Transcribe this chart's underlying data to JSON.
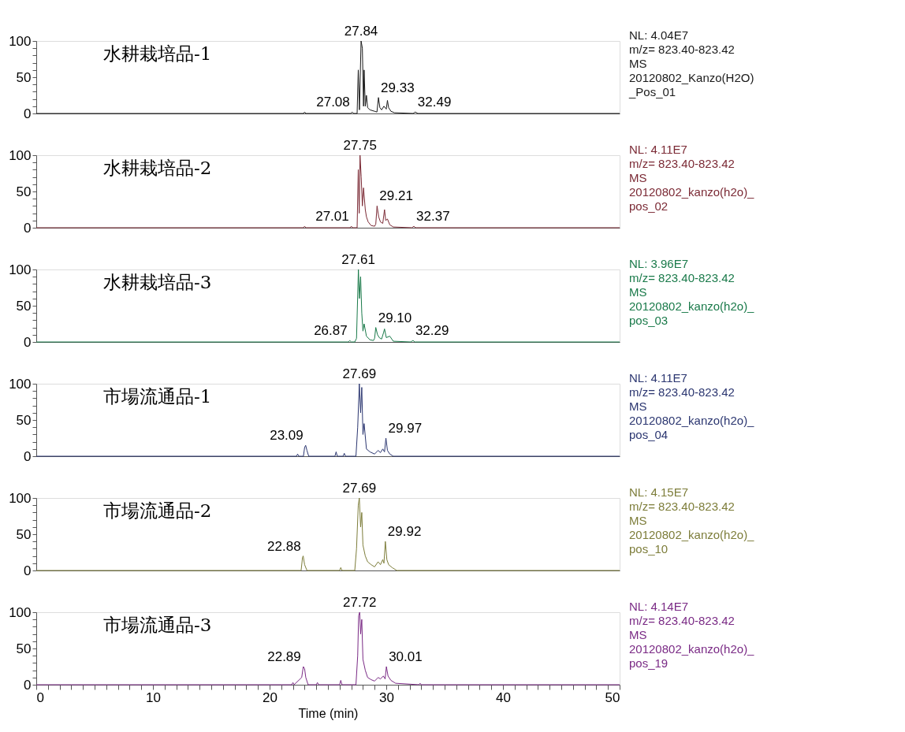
{
  "chart_data": [
    {
      "type": "line",
      "xlim": [
        0,
        50
      ],
      "ylim": [
        0,
        100
      ],
      "tick_labels": "y",
      "grid": false,
      "legend": false,
      "marker": "none",
      "yticks": [
        0,
        {
          "value": 10,
          "label": null
        },
        {
          "value": 20,
          "label": null
        },
        {
          "value": 30,
          "label": null
        },
        {
          "value": 40,
          "label": null
        },
        50,
        {
          "value": 60,
          "label": null
        },
        {
          "value": 70,
          "label": null
        },
        {
          "value": 80,
          "label": null
        },
        {
          "value": 90,
          "label": null
        },
        100
      ],
      "x": [
        0,
        22.9,
        23.0,
        23.1,
        26.95,
        27.08,
        27.2,
        27.5,
        27.6,
        27.7,
        27.84,
        27.95,
        28.05,
        28.1,
        28.2,
        28.3,
        28.4,
        28.6,
        29.0,
        29.2,
        29.33,
        29.45,
        29.6,
        29.8,
        30.0,
        30.1,
        30.2,
        30.4,
        30.7,
        32.3,
        32.49,
        32.7,
        50
      ],
      "series": [
        {
          "color": "#1a1a1a",
          "values": [
            0,
            0,
            2,
            0,
            0,
            2,
            0,
            0,
            60,
            5,
            100,
            90,
            10,
            60,
            10,
            25,
            8,
            5,
            3,
            2,
            22,
            8,
            5,
            10,
            6,
            18,
            8,
            3,
            1,
            0,
            2,
            0,
            0
          ]
        }
      ],
      "annotations": [
        "水耕栽培品-1",
        "NL: 4.04E7\nm/z= 823.40-823.42\nMS\n20120802_Kanzo(H2O)\n_Pos_01",
        {
          "text": "27.08",
          "x": 27.08,
          "y": 2
        },
        {
          "text": "27.84",
          "x": 27.84,
          "y": 100
        },
        {
          "text": "29.33",
          "x": 29.33,
          "y": 22
        },
        {
          "text": "32.49",
          "x": 32.49,
          "y": 2
        }
      ]
    },
    {
      "type": "line",
      "xlim": [
        0,
        50
      ],
      "ylim": [
        0,
        100
      ],
      "tick_labels": "y",
      "grid": false,
      "legend": false,
      "marker": "none",
      "yticks": [
        0,
        {
          "value": 10,
          "label": null
        },
        {
          "value": 20,
          "label": null
        },
        {
          "value": 30,
          "label": null
        },
        {
          "value": 40,
          "label": null
        },
        50,
        {
          "value": 60,
          "label": null
        },
        {
          "value": 70,
          "label": null
        },
        {
          "value": 80,
          "label": null
        },
        {
          "value": 90,
          "label": null
        },
        100
      ],
      "x": [
        0,
        22.9,
        23.0,
        23.1,
        26.9,
        27.01,
        27.1,
        27.5,
        27.6,
        27.68,
        27.75,
        27.85,
        27.95,
        28.05,
        28.2,
        28.3,
        28.45,
        28.7,
        29.0,
        29.1,
        29.21,
        29.35,
        29.5,
        29.7,
        29.85,
        29.95,
        30.1,
        30.3,
        30.6,
        32.2,
        32.37,
        32.5,
        50
      ],
      "series": [
        {
          "color": "#7b2a35",
          "values": [
            0,
            0,
            2,
            0,
            0,
            2,
            0,
            0,
            80,
            20,
            100,
            70,
            30,
            55,
            25,
            15,
            8,
            3,
            2,
            5,
            30,
            15,
            8,
            6,
            25,
            10,
            12,
            4,
            1,
            0,
            2,
            0,
            0
          ]
        }
      ],
      "annotations": [
        "水耕栽培品-2",
        "NL: 4.11E7\nm/z= 823.40-823.42\nMS\n20120802_kanzo(h2o)_\npos_02",
        {
          "text": "27.01",
          "x": 27.01,
          "y": 2
        },
        {
          "text": "27.75",
          "x": 27.75,
          "y": 100
        },
        {
          "text": "29.21",
          "x": 29.21,
          "y": 30
        },
        {
          "text": "32.37",
          "x": 32.37,
          "y": 2
        }
      ]
    },
    {
      "type": "line",
      "xlim": [
        0,
        50
      ],
      "ylim": [
        0,
        100
      ],
      "tick_labels": "y",
      "grid": false,
      "legend": false,
      "marker": "none",
      "yticks": [
        0,
        {
          "value": 10,
          "label": null
        },
        {
          "value": 20,
          "label": null
        },
        {
          "value": 30,
          "label": null
        },
        {
          "value": 40,
          "label": null
        },
        50,
        {
          "value": 60,
          "label": null
        },
        {
          "value": 70,
          "label": null
        },
        {
          "value": 80,
          "label": null
        },
        {
          "value": 90,
          "label": null
        },
        100
      ],
      "x": [
        0,
        26.75,
        26.87,
        27.0,
        27.3,
        27.45,
        27.61,
        27.7,
        27.8,
        27.9,
        28.0,
        28.1,
        28.3,
        28.6,
        28.9,
        29.0,
        29.1,
        29.25,
        29.4,
        29.6,
        29.75,
        29.85,
        30.0,
        30.3,
        30.6,
        32.1,
        32.29,
        32.45,
        50
      ],
      "series": [
        {
          "color": "#1a7a4a",
          "values": [
            0,
            0,
            2,
            0,
            0,
            5,
            100,
            60,
            90,
            40,
            15,
            25,
            8,
            3,
            2,
            5,
            20,
            10,
            6,
            4,
            12,
            18,
            6,
            8,
            1,
            0,
            2,
            0,
            0
          ]
        }
      ],
      "annotations": [
        "水耕栽培品-3",
        "NL: 3.96E7\nm/z= 823.40-823.42\nMS\n20120802_kanzo(h2o)_\npos_03",
        {
          "text": "26.87",
          "x": 26.87,
          "y": 2
        },
        {
          "text": "27.61",
          "x": 27.61,
          "y": 100
        },
        {
          "text": "29.10",
          "x": 29.1,
          "y": 20
        },
        {
          "text": "32.29",
          "x": 32.29,
          "y": 2
        }
      ]
    },
    {
      "type": "line",
      "xlim": [
        0,
        50
      ],
      "ylim": [
        0,
        100
      ],
      "tick_labels": "y",
      "grid": false,
      "legend": false,
      "marker": "none",
      "yticks": [
        0,
        {
          "value": 10,
          "label": null
        },
        {
          "value": 20,
          "label": null
        },
        {
          "value": 30,
          "label": null
        },
        {
          "value": 40,
          "label": null
        },
        50,
        {
          "value": 60,
          "label": null
        },
        {
          "value": 70,
          "label": null
        },
        {
          "value": 80,
          "label": null
        },
        {
          "value": 90,
          "label": null
        },
        100
      ],
      "x": [
        0,
        22.3,
        22.4,
        22.5,
        22.9,
        23.0,
        23.09,
        23.2,
        23.35,
        25.6,
        25.7,
        25.8,
        26.3,
        26.4,
        26.5,
        27.4,
        27.55,
        27.69,
        27.8,
        27.9,
        28.0,
        28.1,
        28.3,
        28.6,
        29.0,
        29.3,
        29.5,
        29.7,
        29.85,
        29.97,
        30.1,
        30.3,
        30.6,
        50
      ],
      "series": [
        {
          "color": "#2b3670",
          "values": [
            0,
            0,
            3,
            0,
            0,
            12,
            15,
            8,
            0,
            0,
            6,
            0,
            0,
            4,
            0,
            0,
            40,
            100,
            60,
            95,
            30,
            45,
            10,
            6,
            3,
            8,
            5,
            10,
            6,
            25,
            8,
            3,
            0,
            0
          ]
        }
      ],
      "annotations": [
        "市場流通品-1",
        "NL: 4.11E7\nm/z= 823.40-823.42\nMS\n20120802_kanzo(h2o)_\npos_04",
        {
          "text": "23.09",
          "x": 23.09,
          "y": 15
        },
        {
          "text": "27.69",
          "x": 27.69,
          "y": 100
        },
        {
          "text": "29.97",
          "x": 29.97,
          "y": 25
        }
      ]
    },
    {
      "type": "line",
      "xlim": [
        0,
        50
      ],
      "ylim": [
        0,
        100
      ],
      "tick_labels": "y",
      "grid": false,
      "legend": false,
      "marker": "none",
      "yticks": [
        0,
        {
          "value": 10,
          "label": null
        },
        {
          "value": 20,
          "label": null
        },
        {
          "value": 30,
          "label": null
        },
        {
          "value": 40,
          "label": null
        },
        50,
        {
          "value": 60,
          "label": null
        },
        {
          "value": 70,
          "label": null
        },
        {
          "value": 80,
          "label": null
        },
        {
          "value": 90,
          "label": null
        },
        100
      ],
      "x": [
        0,
        22.7,
        22.82,
        22.88,
        23.0,
        23.2,
        26.0,
        26.1,
        26.2,
        27.3,
        27.45,
        27.6,
        27.69,
        27.8,
        27.9,
        28.0,
        28.2,
        28.4,
        28.7,
        29.0,
        29.3,
        29.5,
        29.7,
        29.8,
        29.92,
        30.05,
        30.2,
        30.5,
        30.9,
        50
      ],
      "series": [
        {
          "color": "#7d7d3a",
          "values": [
            0,
            0,
            18,
            20,
            8,
            0,
            0,
            4,
            0,
            0,
            30,
            90,
            100,
            60,
            80,
            35,
            20,
            12,
            8,
            5,
            12,
            8,
            15,
            10,
            40,
            15,
            8,
            4,
            0,
            0
          ]
        }
      ],
      "annotations": [
        "市場流通品-2",
        "NL: 4.15E7\nm/z= 823.40-823.42\nMS\n20120802_kanzo(h2o)_\npos_10",
        {
          "text": "22.88",
          "x": 22.88,
          "y": 20
        },
        {
          "text": "27.69",
          "x": 27.69,
          "y": 100
        },
        {
          "text": "29.92",
          "x": 29.92,
          "y": 40
        }
      ]
    },
    {
      "type": "line",
      "xlim": [
        0,
        50
      ],
      "ylim": [
        0,
        100
      ],
      "grid": false,
      "legend": false,
      "marker": "none",
      "xlabel": "Time (min)",
      "xticks": [
        0,
        {
          "value": 1,
          "label": null
        },
        {
          "value": 2,
          "label": null
        },
        {
          "value": 3,
          "label": null
        },
        {
          "value": 4,
          "label": null
        },
        {
          "value": 5,
          "label": null
        },
        {
          "value": 6,
          "label": null
        },
        {
          "value": 7,
          "label": null
        },
        {
          "value": 8,
          "label": null
        },
        {
          "value": 9,
          "label": null
        },
        10,
        {
          "value": 11,
          "label": null
        },
        {
          "value": 12,
          "label": null
        },
        {
          "value": 13,
          "label": null
        },
        {
          "value": 14,
          "label": null
        },
        {
          "value": 15,
          "label": null
        },
        {
          "value": 16,
          "label": null
        },
        {
          "value": 17,
          "label": null
        },
        {
          "value": 18,
          "label": null
        },
        {
          "value": 19,
          "label": null
        },
        20,
        {
          "value": 21,
          "label": null
        },
        {
          "value": 22,
          "label": null
        },
        {
          "value": 23,
          "label": null
        },
        {
          "value": 24,
          "label": null
        },
        {
          "value": 25,
          "label": null
        },
        {
          "value": 26,
          "label": null
        },
        {
          "value": 27,
          "label": null
        },
        {
          "value": 28,
          "label": null
        },
        {
          "value": 29,
          "label": null
        },
        30,
        {
          "value": 31,
          "label": null
        },
        {
          "value": 32,
          "label": null
        },
        {
          "value": 33,
          "label": null
        },
        {
          "value": 34,
          "label": null
        },
        {
          "value": 35,
          "label": null
        },
        {
          "value": 36,
          "label": null
        },
        {
          "value": 37,
          "label": null
        },
        {
          "value": 38,
          "label": null
        },
        {
          "value": 39,
          "label": null
        },
        40,
        {
          "value": 41,
          "label": null
        },
        {
          "value": 42,
          "label": null
        },
        {
          "value": 43,
          "label": null
        },
        {
          "value": 44,
          "label": null
        },
        {
          "value": 45,
          "label": null
        },
        {
          "value": 46,
          "label": null
        },
        {
          "value": 47,
          "label": null
        },
        {
          "value": 48,
          "label": null
        },
        {
          "value": 49,
          "label": null
        },
        50
      ],
      "yticks": [
        0,
        {
          "value": 10,
          "label": null
        },
        {
          "value": 20,
          "label": null
        },
        {
          "value": 30,
          "label": null
        },
        {
          "value": 40,
          "label": null
        },
        50,
        {
          "value": 60,
          "label": null
        },
        {
          "value": 70,
          "label": null
        },
        {
          "value": 80,
          "label": null
        },
        {
          "value": 90,
          "label": null
        },
        100
      ],
      "x": [
        0,
        21.9,
        22.0,
        22.1,
        22.75,
        22.89,
        23.0,
        23.1,
        23.3,
        24.0,
        24.1,
        24.2,
        26.0,
        26.1,
        26.2,
        27.4,
        27.55,
        27.63,
        27.72,
        27.8,
        27.9,
        28.0,
        28.2,
        28.4,
        28.7,
        29.0,
        29.3,
        29.5,
        29.75,
        29.9,
        30.01,
        30.15,
        30.4,
        30.8,
        32.8,
        32.9,
        33.0,
        50
      ],
      "series": [
        {
          "color": "#7a2a85",
          "values": [
            0,
            0,
            3,
            0,
            10,
            25,
            22,
            10,
            0,
            0,
            3,
            0,
            0,
            6,
            0,
            0,
            40,
            95,
            100,
            70,
            90,
            35,
            20,
            10,
            7,
            5,
            10,
            8,
            12,
            8,
            25,
            12,
            6,
            2,
            0,
            2,
            0,
            0
          ]
        }
      ],
      "annotations": [
        "市場流通品-3",
        "NL: 4.14E7\nm/z= 823.40-823.42\nMS\n20120802_kanzo(h2o)_\npos_19",
        {
          "text": "22.89",
          "x": 22.89,
          "y": 25
        },
        {
          "text": "27.72",
          "x": 27.72,
          "y": 100
        },
        {
          "text": "30.01",
          "x": 30.01,
          "y": 25
        }
      ]
    }
  ]
}
